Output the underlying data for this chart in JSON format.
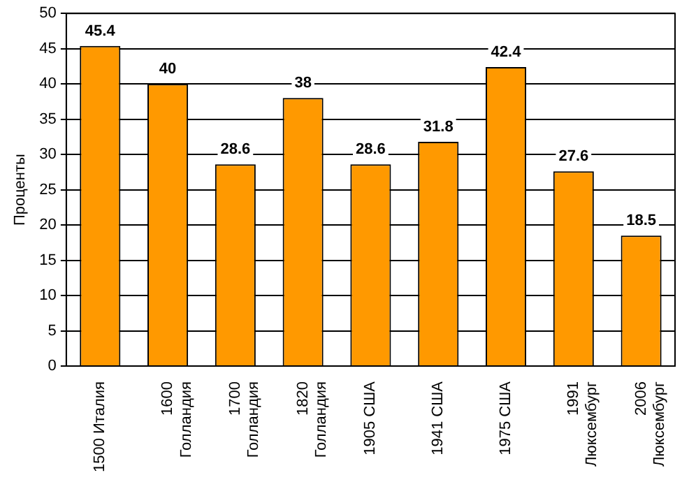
{
  "chart_data": {
    "type": "bar",
    "ylabel": "Проценты",
    "categories": [
      "1500 Италия",
      "1600 Голландия",
      "1700 Голландия",
      "1820 Голландия",
      "1905 США",
      "1941 США",
      "1975 США",
      "1991 Люксембург",
      "2006 Люксембург"
    ],
    "values": [
      45.4,
      40,
      28.6,
      38,
      28.6,
      31.8,
      42.4,
      27.6,
      18.5
    ],
    "color": "#ff9900",
    "ylim": [
      0,
      50
    ],
    "yticks": [
      0,
      5,
      10,
      15,
      20,
      25,
      30,
      35,
      40,
      45,
      50
    ],
    "grid": "y",
    "data_labels": true
  }
}
